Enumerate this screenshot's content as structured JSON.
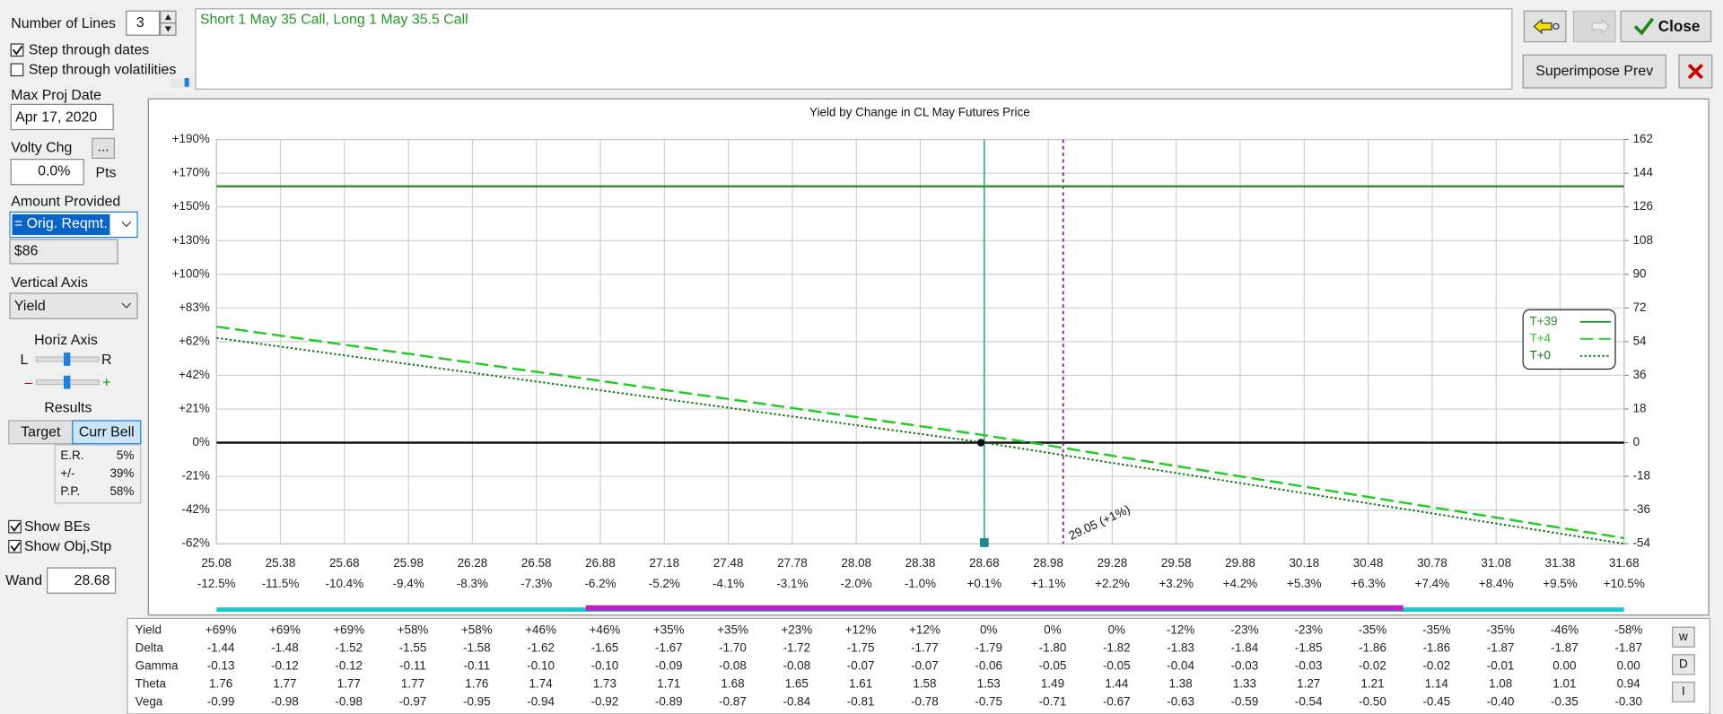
{
  "left_panel": {
    "number_of_lines_label": "Number of Lines",
    "number_of_lines": "3",
    "step_dates": "Step through dates",
    "step_vols": "Step through volatilities",
    "max_proj_date_label": "Max Proj Date",
    "max_proj_date": "Apr 17, 2020",
    "volty_chg_label": "Volty Chg",
    "volty_button": "...",
    "volty_chg": "0.0%",
    "volty_unit": "Pts",
    "amount_label": "Amount Provided",
    "amount_mode": "= Orig. Reqmt.",
    "amount": "$86",
    "vertical_axis_label": "Vertical Axis",
    "vertical_axis": "Yield",
    "horiz_axis_label": "Horiz Axis",
    "slider_left": "L",
    "slider_right": "R",
    "slider_minus": "–",
    "slider_plus": "+",
    "results_label": "Results",
    "target_button": "Target",
    "curr_bell_button": "Curr Bell",
    "results": [
      {
        "label": "E.R.",
        "value": "5%"
      },
      {
        "label": "+/-",
        "value": "39%"
      },
      {
        "label": "P.P.",
        "value": "58%"
      }
    ],
    "show_bes": "Show BEs",
    "show_obj": "Show Obj,Stp",
    "wand_label": "Wand"
  },
  "description": "Short 1 May 35 Call, Long 1 May 35.5 Call",
  "buttons": {
    "close": "Close",
    "superimpose": "Superimpose Prev"
  },
  "chart_data": {
    "type": "line",
    "title": "Yield by Change in CL May Futures Price",
    "xlim": [
      25.08,
      31.68
    ],
    "xticks": [
      25.08,
      25.38,
      25.68,
      25.98,
      26.28,
      26.58,
      26.88,
      27.18,
      27.48,
      27.78,
      28.08,
      28.38,
      28.68,
      28.98,
      29.28,
      29.58,
      29.88,
      30.18,
      30.48,
      30.78,
      31.08,
      31.38,
      31.68
    ],
    "x_pct_labels": [
      "-12.5%",
      "-11.5%",
      "-10.4%",
      "-9.4%",
      "-8.3%",
      "-7.3%",
      "-6.2%",
      "-5.2%",
      "-4.1%",
      "-3.1%",
      "-2.0%",
      "-1.0%",
      "+0.1%",
      "+1.1%",
      "+2.2%",
      "+3.2%",
      "+4.2%",
      "+5.3%",
      "+6.3%",
      "+7.4%",
      "+8.4%",
      "+9.5%",
      "+10.5%"
    ],
    "ylim": [
      -54,
      162
    ],
    "yticks": [
      {
        "value": 162,
        "label": "+190%"
      },
      {
        "value": 144,
        "label": "+170%"
      },
      {
        "value": 126,
        "label": "+150%"
      },
      {
        "value": 108,
        "label": "+130%"
      },
      {
        "value": 90,
        "label": "+100%"
      },
      {
        "value": 72,
        "label": "+83%"
      },
      {
        "value": 54,
        "label": "+62%"
      },
      {
        "value": 36,
        "label": "+42%"
      },
      {
        "value": 18,
        "label": "+21%"
      },
      {
        "value": 0,
        "label": "0%"
      },
      {
        "value": -18,
        "label": "-21%"
      },
      {
        "value": -36,
        "label": "-42%"
      },
      {
        "value": -54,
        "label": "-62%"
      }
    ],
    "y2lim": [
      -54,
      162
    ],
    "y2ticks": [
      162,
      144,
      126,
      108,
      90,
      72,
      54,
      36,
      18,
      0,
      -18,
      -36,
      -54
    ],
    "grid": true,
    "legend": "right",
    "series": [
      {
        "name": "T+39",
        "color": "#2e8b2e",
        "dash": "solid",
        "x": [
          25.08,
          31.68
        ],
        "values": [
          137,
          137
        ]
      },
      {
        "name": "T+4",
        "color": "#22cc22",
        "dash": "dashed",
        "x": [
          25.08,
          28.68,
          31.68
        ],
        "values": [
          62,
          4,
          -51
        ]
      },
      {
        "name": "T+0",
        "color": "#117711",
        "dash": "dotted",
        "x": [
          25.08,
          28.68,
          31.68
        ],
        "values": [
          56,
          0,
          -54
        ]
      }
    ],
    "wand": 28.68,
    "breakeven": {
      "value": 29.05,
      "label": "29.05 (+1%)"
    }
  },
  "table": {
    "rows": [
      {
        "label": "Yield",
        "cells": [
          "+69%",
          "+69%",
          "+69%",
          "+58%",
          "+58%",
          "+46%",
          "+46%",
          "+35%",
          "+35%",
          "+23%",
          "+12%",
          "+12%",
          "0%",
          "0%",
          "0%",
          "-12%",
          "-23%",
          "-23%",
          "-35%",
          "-35%",
          "-35%",
          "-46%",
          "-58%"
        ]
      },
      {
        "label": "Delta",
        "cells": [
          "-1.44",
          "-1.48",
          "-1.52",
          "-1.55",
          "-1.58",
          "-1.62",
          "-1.65",
          "-1.67",
          "-1.70",
          "-1.72",
          "-1.75",
          "-1.77",
          "-1.79",
          "-1.80",
          "-1.82",
          "-1.83",
          "-1.84",
          "-1.85",
          "-1.86",
          "-1.86",
          "-1.87",
          "-1.87",
          "-1.87"
        ]
      },
      {
        "label": "Gamma",
        "cells": [
          "-0.13",
          "-0.12",
          "-0.12",
          "-0.11",
          "-0.11",
          "-0.10",
          "-0.10",
          "-0.09",
          "-0.08",
          "-0.08",
          "-0.07",
          "-0.07",
          "-0.06",
          "-0.05",
          "-0.05",
          "-0.04",
          "-0.03",
          "-0.03",
          "-0.02",
          "-0.02",
          "-0.01",
          "0.00",
          "0.00"
        ]
      },
      {
        "label": "Theta",
        "cells": [
          "1.76",
          "1.77",
          "1.77",
          "1.77",
          "1.76",
          "1.74",
          "1.73",
          "1.71",
          "1.68",
          "1.65",
          "1.61",
          "1.58",
          "1.53",
          "1.49",
          "1.44",
          "1.38",
          "1.33",
          "1.27",
          "1.21",
          "1.14",
          "1.08",
          "1.01",
          "0.94"
        ]
      },
      {
        "label": "Vega",
        "cells": [
          "-0.99",
          "-0.98",
          "-0.98",
          "-0.97",
          "-0.95",
          "-0.94",
          "-0.92",
          "-0.89",
          "-0.87",
          "-0.84",
          "-0.81",
          "-0.78",
          "-0.75",
          "-0.71",
          "-0.67",
          "-0.63",
          "-0.59",
          "-0.54",
          "-0.50",
          "-0.45",
          "-0.40",
          "-0.35",
          "-0.30"
        ]
      }
    ],
    "side_buttons": [
      "w",
      "D",
      "I"
    ]
  }
}
